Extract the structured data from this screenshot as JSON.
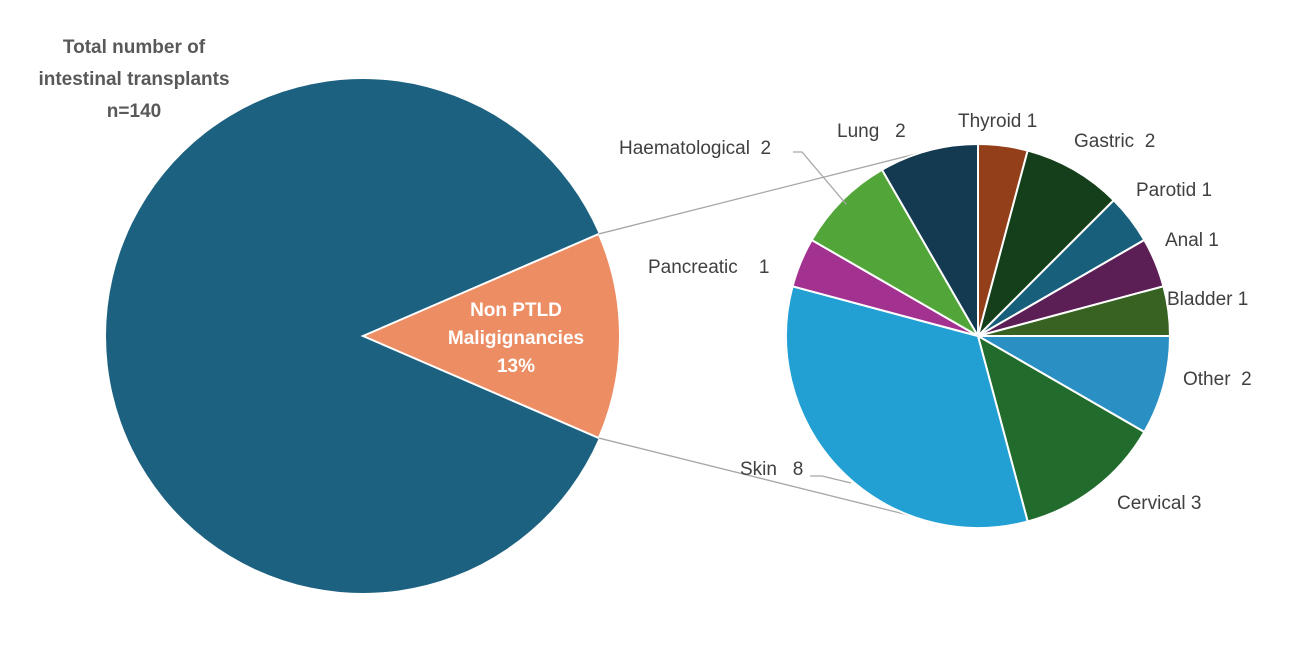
{
  "chart_data": {
    "type": "pie",
    "title_lines": [
      "Total number of",
      "intestinal transplants",
      "n=140"
    ],
    "main_pie": {
      "slices": [
        {
          "label": "",
          "percent": 87,
          "color": "#1c6180"
        },
        {
          "label_lines": [
            "Non PTLD",
            "Maligignancies",
            "13%"
          ],
          "percent": 13,
          "color": "#ec8d63"
        }
      ]
    },
    "breakdown_pie": {
      "slices": [
        {
          "label": "Thyroid 1",
          "value": 1,
          "color": "#933f19"
        },
        {
          "label": "Gastric  2",
          "value": 2,
          "color": "#153f1a"
        },
        {
          "label": "Parotid 1",
          "value": 1,
          "color": "#185f7c"
        },
        {
          "label": "Anal 1",
          "value": 1,
          "color": "#5c1f55"
        },
        {
          "label": "Bladder 1",
          "value": 1,
          "color": "#376222"
        },
        {
          "label": "Other  2",
          "value": 2,
          "color": "#2a90c3"
        },
        {
          "label": "Cervical 3",
          "value": 3,
          "color": "#216b2c"
        },
        {
          "label": "Skin   8",
          "value": 8,
          "color": "#22a0d4"
        },
        {
          "label": "Pancreatic    1",
          "value": 1,
          "color": "#a2318f"
        },
        {
          "label": "Haematological  2",
          "value": 2,
          "color": "#52a639"
        },
        {
          "label": "Lung   2",
          "value": 2,
          "color": "#143a52"
        }
      ]
    }
  }
}
